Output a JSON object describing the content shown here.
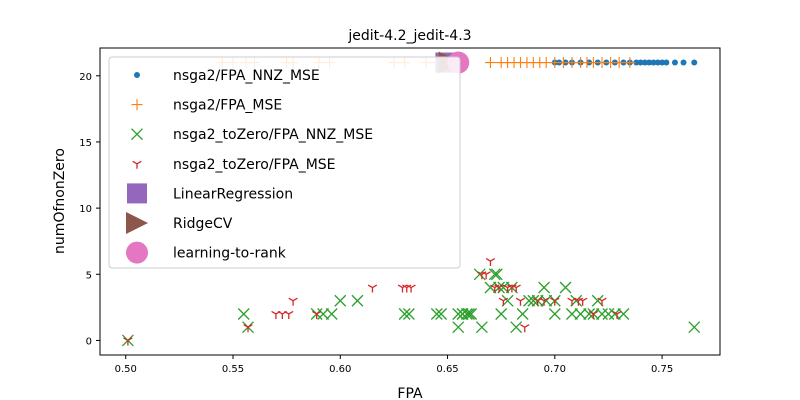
{
  "chart_data": {
    "type": "scatter",
    "title": "jedit-4.2_jedit-4.3",
    "xlabel": "FPA",
    "ylabel": "numOfnonZero",
    "xlim": [
      0.488,
      0.777
    ],
    "ylim": [
      -1.1,
      22.1
    ],
    "xticks": [
      0.5,
      0.55,
      0.6,
      0.65,
      0.7,
      0.75
    ],
    "xtick_labels": [
      "0.50",
      "0.55",
      "0.60",
      "0.65",
      "0.70",
      "0.75"
    ],
    "yticks": [
      0,
      5,
      10,
      15,
      20
    ],
    "ytick_labels": [
      "0",
      "5",
      "10",
      "15",
      "20"
    ],
    "grid": false,
    "legend_position": "upper-left",
    "series": [
      {
        "name": "nsga2/FPA_NNZ_MSE",
        "marker": "dot",
        "color": "#1f77b4",
        "x": [
          0.7,
          0.702,
          0.705,
          0.708,
          0.712,
          0.716,
          0.72,
          0.724,
          0.728,
          0.732,
          0.735,
          0.738,
          0.74,
          0.742,
          0.744,
          0.746,
          0.748,
          0.75,
          0.752,
          0.756,
          0.76,
          0.765
        ],
        "y": [
          21,
          21,
          21,
          21,
          21,
          21,
          21,
          21,
          21,
          21,
          21,
          21,
          21,
          21,
          21,
          21,
          21,
          21,
          21,
          21,
          21,
          21
        ]
      },
      {
        "name": "nsga2/FPA_MSE",
        "marker": "plus",
        "color": "#ff7f0e",
        "x": [
          0.545,
          0.55,
          0.556,
          0.56,
          0.575,
          0.578,
          0.59,
          0.595,
          0.625,
          0.63,
          0.64,
          0.645,
          0.67,
          0.675,
          0.678,
          0.681,
          0.684,
          0.687,
          0.69,
          0.693,
          0.696,
          0.7,
          0.704,
          0.708,
          0.712,
          0.715,
          0.718,
          0.722,
          0.726,
          0.73,
          0.735
        ],
        "y": [
          21,
          21,
          21,
          21,
          21,
          21,
          21,
          21,
          21,
          21,
          21,
          21,
          21,
          21,
          21,
          21,
          21,
          21,
          21,
          21,
          21,
          21,
          21,
          21,
          21,
          21,
          21,
          21,
          21,
          21,
          21
        ]
      },
      {
        "name": "nsga2_toZero/FPA_NNZ_MSE",
        "marker": "x",
        "color": "#2ca02c",
        "x": [
          0.501,
          0.555,
          0.557,
          0.589,
          0.592,
          0.596,
          0.6,
          0.608,
          0.63,
          0.632,
          0.645,
          0.647,
          0.655,
          0.657,
          0.66,
          0.665,
          0.666,
          0.67,
          0.673,
          0.675,
          0.678,
          0.68,
          0.682,
          0.685,
          0.69,
          0.695,
          0.7,
          0.705,
          0.708,
          0.712,
          0.716,
          0.72,
          0.725,
          0.732,
          0.765
        ],
        "y": [
          0,
          2,
          1,
          2,
          2,
          2,
          3,
          3,
          2,
          2,
          2,
          2,
          1,
          2,
          2,
          5,
          1,
          4,
          5,
          2,
          3,
          4,
          1,
          2,
          3,
          4,
          2,
          4,
          2,
          2,
          2,
          3,
          2,
          2,
          1
        ],
        "extra_marks": [
          0.655,
          0.657,
          0.659,
          0.661,
          0.672,
          0.674,
          0.676,
          0.688,
          0.692,
          0.696,
          0.7,
          0.718,
          0.722,
          0.71,
          0.728
        ],
        "extra_marks_y": [
          2,
          2,
          2,
          2,
          5,
          4,
          4,
          3,
          3,
          3,
          3,
          2,
          2,
          3,
          2
        ]
      },
      {
        "name": "nsga2_toZero/FPA_MSE",
        "marker": "tri_down",
        "color": "#d62728",
        "x": [
          0.501,
          0.557,
          0.57,
          0.573,
          0.576,
          0.578,
          0.589,
          0.615,
          0.629,
          0.631,
          0.633,
          0.666,
          0.668,
          0.67,
          0.672,
          0.674,
          0.676,
          0.678,
          0.68,
          0.682,
          0.684,
          0.686,
          0.692,
          0.695,
          0.7,
          0.708,
          0.711,
          0.713,
          0.718,
          0.722,
          0.729
        ],
        "y": [
          0,
          1,
          2,
          2,
          2,
          3,
          2,
          4,
          4,
          4,
          4,
          5,
          5,
          6,
          4,
          4,
          3,
          4,
          4,
          4,
          3,
          1,
          3,
          3,
          3,
          3,
          3,
          3,
          2,
          3,
          2
        ]
      },
      {
        "name": "LinearRegression",
        "marker": "square",
        "color": "#9467bd",
        "x": [
          0.649
        ],
        "y": [
          21
        ]
      },
      {
        "name": "RidgeCV",
        "marker": "triangle_right",
        "color": "#8c564b",
        "x": [
          0.651
        ],
        "y": [
          21
        ]
      },
      {
        "name": "learning-to-rank",
        "marker": "circle",
        "color": "#e377c2",
        "x": [
          0.655
        ],
        "y": [
          21
        ]
      }
    ]
  }
}
